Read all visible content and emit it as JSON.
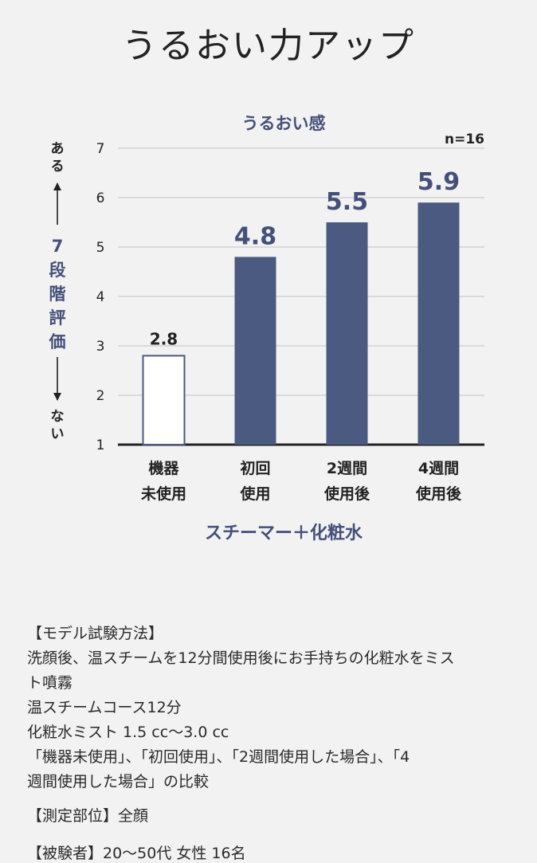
{
  "page_title": "うるおい力アップ",
  "chart_data": {
    "type": "bar",
    "title": "うるおい感",
    "sample_note": "n=16",
    "ylabel_top": "ある",
    "ylabel_mid": "7段階評価",
    "ylabel_bottom": "ない",
    "xlabel": "スチーマー＋化粧水",
    "ylim": [
      1,
      7
    ],
    "yticks": [
      "1",
      "2",
      "3",
      "4",
      "5",
      "6",
      "7"
    ],
    "categories": [
      [
        "機器",
        "未使用"
      ],
      [
        "初回",
        "使用"
      ],
      [
        "2週間",
        "使用後"
      ],
      [
        "4週間",
        "使用後"
      ]
    ],
    "values": [
      2.8,
      4.8,
      5.5,
      5.9
    ],
    "value_labels": [
      "2.8",
      "4.8",
      "5.5",
      "5.9"
    ],
    "grid": true,
    "colors": {
      "bar": "#4a5a80",
      "baseline_bar_fill": "#ffffff",
      "baseline_bar_stroke": "#4a5a80",
      "accent_text": "#44507a"
    }
  },
  "notes": {
    "method_heading": "【モデル試験方法】",
    "method_line1": "洗顔後、温スチームを12分間使用後にお手持ちの化粧水をミス",
    "method_line2": "ト噴霧",
    "method_line3": "温スチームコース12分",
    "method_line4": "化粧水ミスト 1.5 cc〜3.0 cc",
    "method_line5": "「機器未使用」、「初回使用」、「2週間使用した場合」、「4",
    "method_line6": "週間使用した場合」の比較",
    "area": "【測定部位】全顔",
    "subjects": "【被験者】20～50代 女性 16名"
  }
}
